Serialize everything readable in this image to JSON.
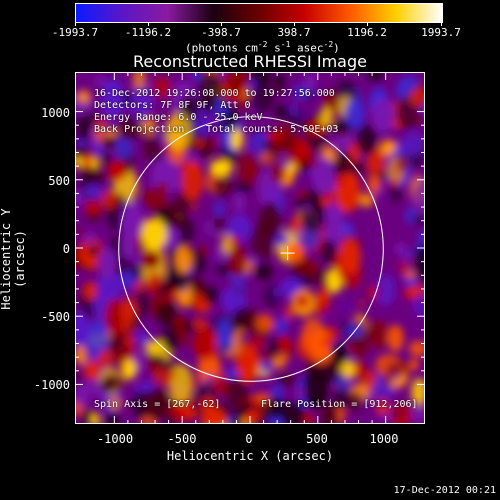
{
  "colorbar": {
    "tick_labels": [
      "-1993.7",
      "-1196.2",
      "-398.7",
      "398.7",
      "1196.2",
      "1993.7"
    ],
    "units_prefix": "(photons cm",
    "units_exp1": "-2",
    "units_s": " s",
    "units_exp2": "-1",
    "units_asec": " asec",
    "units_exp3": "-2",
    "units_suffix": ")",
    "colors": [
      "#0b1bff",
      "#5a16c8",
      "#8a1aa0",
      "#1a0010",
      "#6a0000",
      "#c80000",
      "#ff5a00",
      "#ffd000",
      "#ffffff"
    ]
  },
  "image": {
    "title": "Reconstructed RHESSI Image",
    "time_range": "16-Dec-2012 19:26:08.000 to 19:27:56.000",
    "detectors": "Detectors: 7F 8F 9F, Att 0",
    "energy_range": "Energy Range: 6.0 - 25.0 keV",
    "method": "Back Projection",
    "total_counts": "Total counts: 5.69E+03",
    "spin_axis": "Spin Axis = [267,-62]",
    "flare_position": "Flare Position = [912,206]",
    "flare_marker_xy": [
      270,
      -30
    ],
    "solar_radius_arcsec": 975
  },
  "axes": {
    "xlabel": "Heliocentric X (arcsec)",
    "ylabel": "Heliocentric Y (arcsec)",
    "xlim": [
      -1290,
      1290
    ],
    "ylim": [
      -1290,
      1290
    ],
    "x_ticks": [
      "-1000",
      "-500",
      "0",
      "500",
      "1000"
    ],
    "y_ticks": [
      "1000",
      "500",
      "0",
      "-500",
      "-1000"
    ]
  },
  "footer": {
    "timestamp": "17-Dec-2012 00:21"
  }
}
